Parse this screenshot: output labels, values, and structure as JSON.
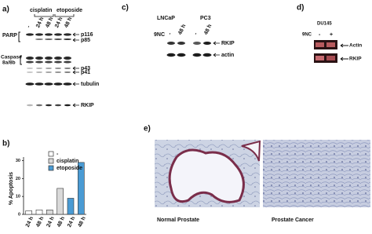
{
  "panel_a": {
    "label": "a)",
    "groups": [
      "cisplatin",
      "etoposide"
    ],
    "lanes": [
      "-",
      "24 h",
      "48 h",
      "24 h",
      "48 h"
    ],
    "row_labels": [
      "PARP",
      "Caspase",
      "8a/8b"
    ],
    "band_labels": [
      "p116",
      "p85",
      "p43",
      "p41",
      "tubulin",
      "RKIP"
    ]
  },
  "panel_b_label": "b)",
  "chart_data": {
    "type": "bar",
    "y_label": "% Apoptosis",
    "categories": [
      "24 h",
      "48 h",
      "24 h",
      "48 h",
      "24 h",
      "48 h"
    ],
    "series": [
      {
        "name": "-",
        "color": "#ffffff",
        "values": [
          2,
          2.5,
          null,
          null,
          null,
          null
        ]
      },
      {
        "name": "cisplatin",
        "color": "#d9d9d9",
        "values": [
          null,
          null,
          2.5,
          14.5,
          null,
          null
        ]
      },
      {
        "name": "etoposide",
        "color": "#4a9bd4",
        "values": [
          null,
          null,
          null,
          null,
          9,
          29
        ]
      }
    ],
    "ylim": [
      0,
      32
    ],
    "yticks": [
      0,
      10,
      20,
      30
    ]
  },
  "panel_c": {
    "label": "c)",
    "cell_lines": [
      "LNCaP",
      "PC3"
    ],
    "treatment": "9NC",
    "lanes": [
      "-",
      "48 h",
      "-",
      "48 h"
    ],
    "band_labels": [
      "RKIP",
      "actin"
    ]
  },
  "panel_d": {
    "label": "d)",
    "cell_line": "DU145",
    "treatment": "9NC",
    "lanes": [
      "-",
      "+"
    ],
    "band_labels": [
      "Actin",
      "RKIP"
    ]
  },
  "panel_e": {
    "label": "e)",
    "captions": [
      "Normal  Prostate",
      "Prostate Cancer"
    ]
  }
}
